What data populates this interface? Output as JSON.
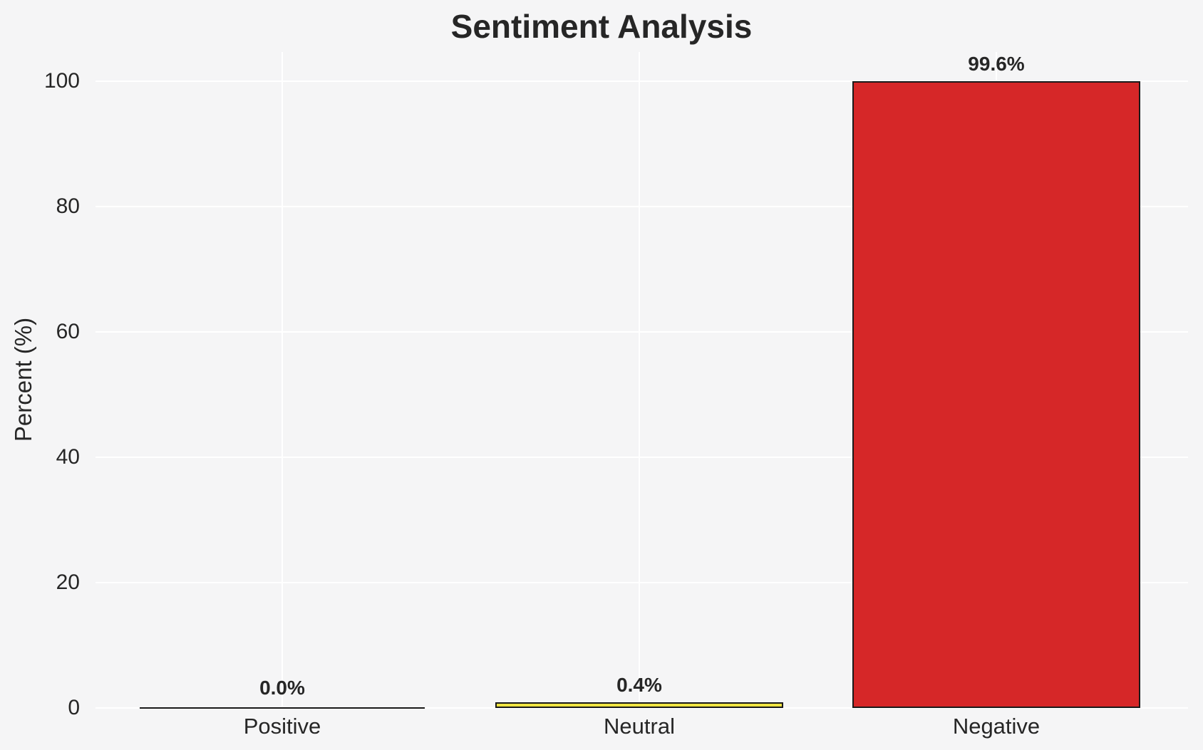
{
  "chart_data": {
    "type": "bar",
    "title": "Sentiment Analysis",
    "xlabel": "",
    "ylabel": "Percent (%)",
    "categories": [
      "Positive",
      "Neutral",
      "Negative"
    ],
    "values": [
      0.0,
      0.4,
      99.6
    ],
    "value_labels": [
      "0.0%",
      "0.4%",
      "99.6%"
    ],
    "bar_colors": [
      null,
      "#f0e442",
      "#d62728"
    ],
    "bar_edge_color": "#1a1a1a",
    "yticks": [
      0,
      20,
      40,
      60,
      80,
      100
    ],
    "ylim": [
      0,
      104.6
    ],
    "grid": true,
    "grid_color": "#ffffff",
    "background_color": "#f5f5f6",
    "text_color": "#262626",
    "legend_position": "none"
  }
}
